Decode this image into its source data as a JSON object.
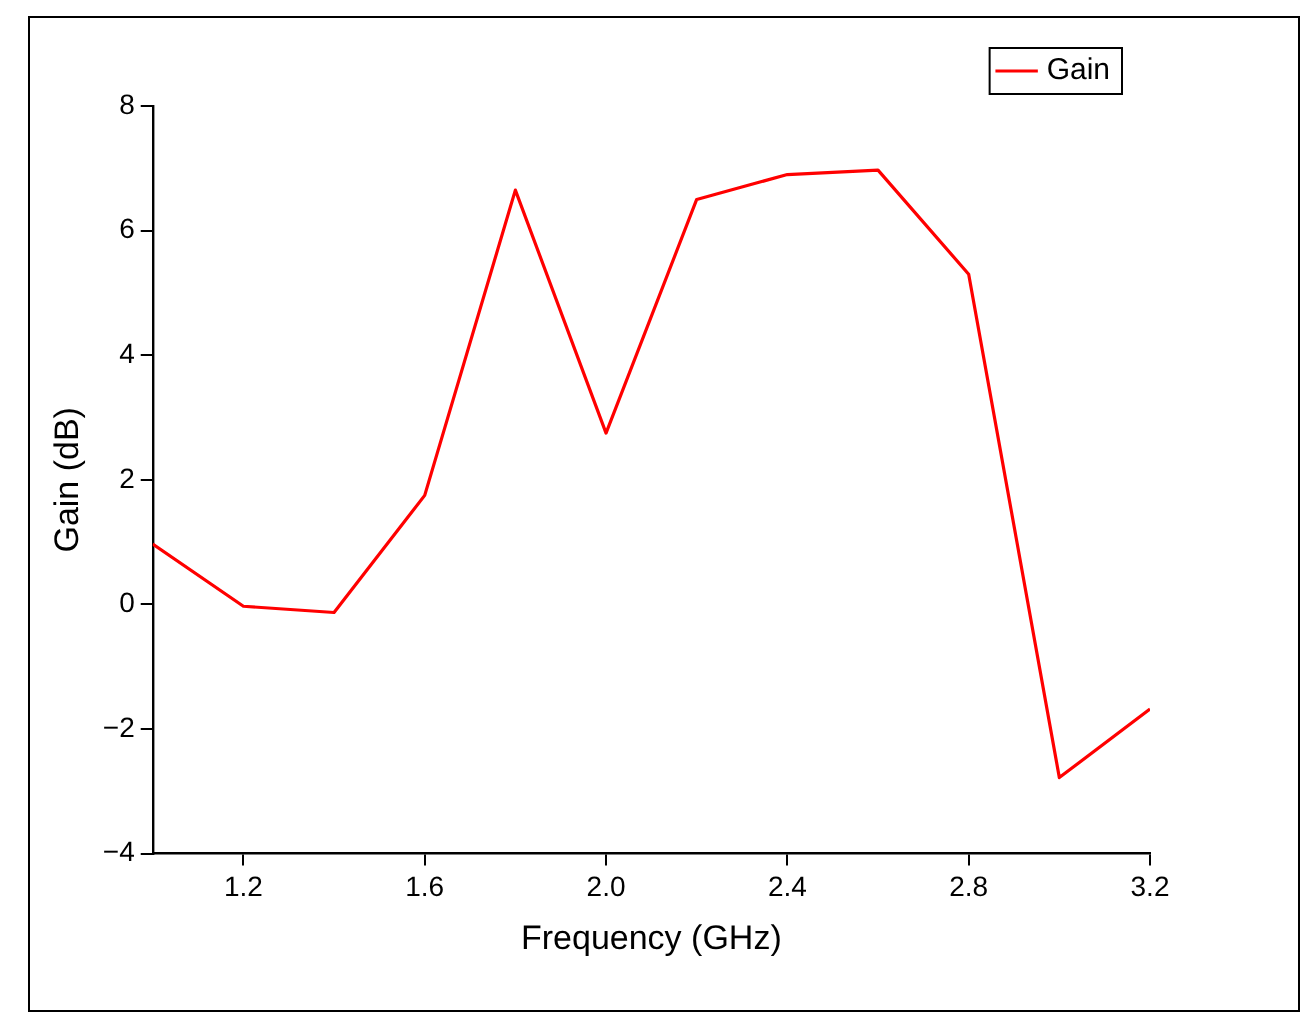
{
  "chart_data": {
    "type": "line",
    "xlabel": "Frequency (GHz)",
    "ylabel": "Gain (dB)",
    "x": [
      1.0,
      1.2,
      1.4,
      1.6,
      1.8,
      2.0,
      2.2,
      2.4,
      2.6,
      2.8,
      3.0,
      3.2
    ],
    "series": [
      {
        "name": "Gain",
        "color": "#ff0000",
        "values": [
          0.97,
          -0.03,
          -0.13,
          1.75,
          6.65,
          2.75,
          6.5,
          6.9,
          6.97,
          5.3,
          -2.78,
          -1.68
        ]
      }
    ],
    "xlim": [
      1.0,
      3.2
    ],
    "xticks": [
      1.2,
      1.6,
      {
        "value": 2.0,
        "label": "2.0"
      },
      2.4,
      2.8,
      3.2
    ],
    "ylim": [
      -4,
      8
    ],
    "yticks": [
      {
        "value": -4,
        "label": "−4"
      },
      {
        "value": -2,
        "label": "−2"
      },
      0,
      2,
      4,
      6,
      8
    ],
    "grid": false,
    "legend": "top right",
    "marker": "none",
    "line_style": "solid"
  }
}
